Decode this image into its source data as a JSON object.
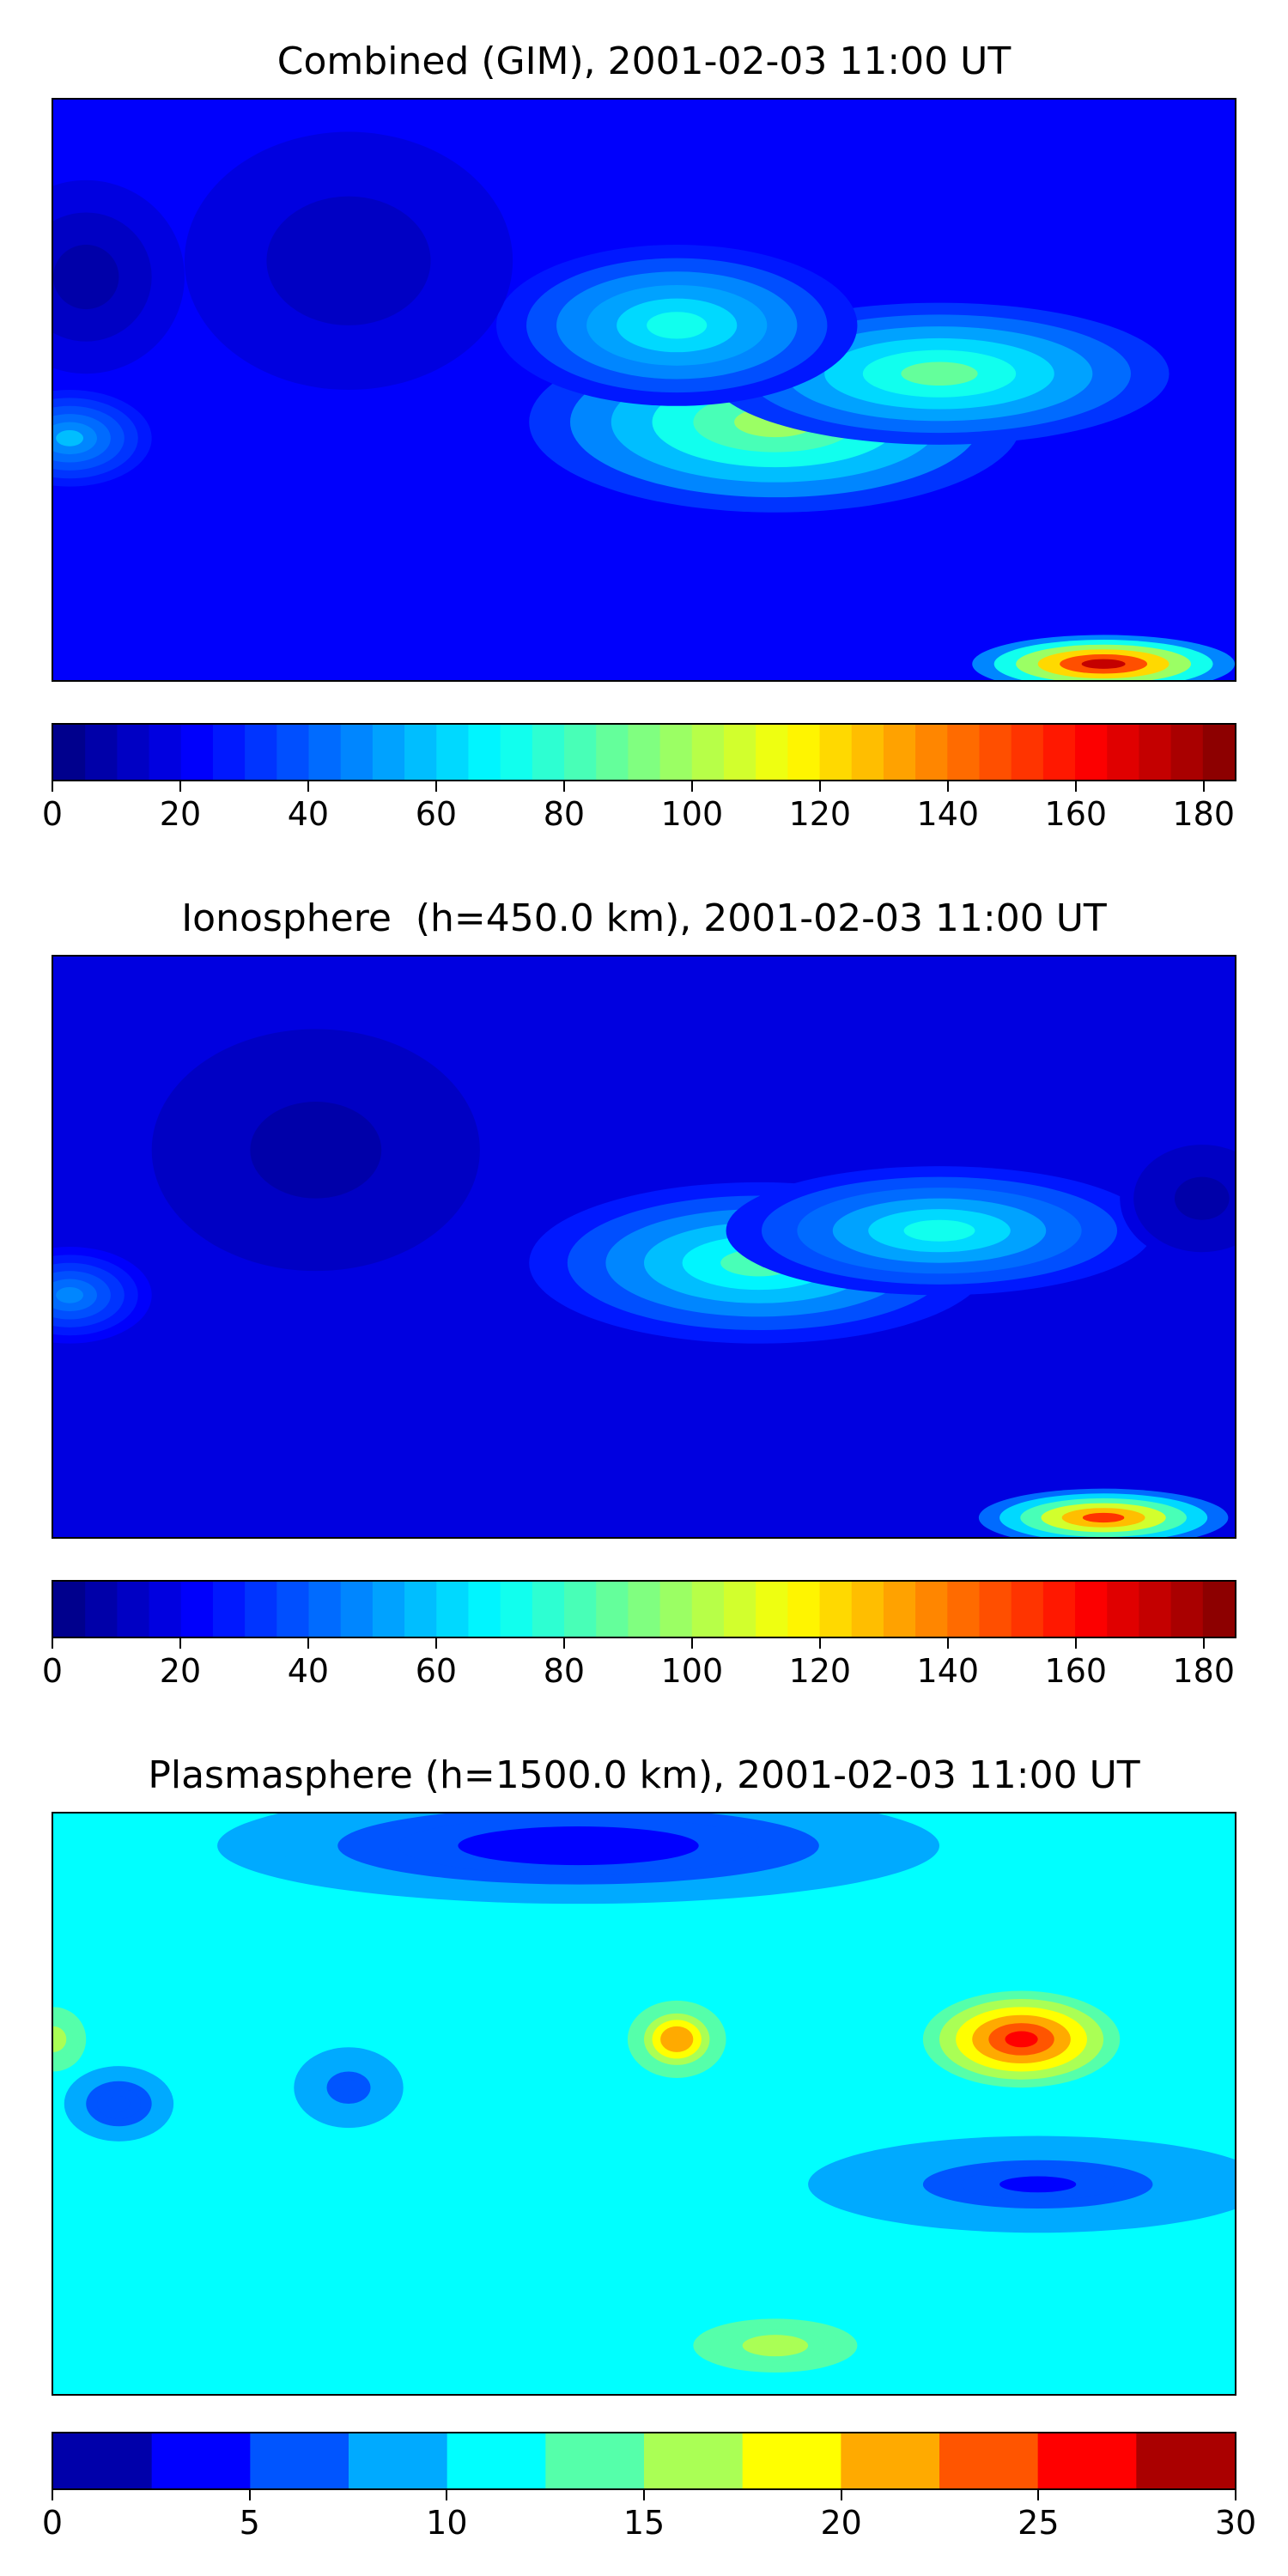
{
  "chart_data": [
    {
      "type": "heatmap",
      "title": "Combined (GIM), 2001-02-03 11:00 UT",
      "colormap": "jet",
      "colorbar": {
        "min": 0,
        "max": 185,
        "levels": 37,
        "ticks": [
          0,
          20,
          40,
          60,
          80,
          100,
          120,
          140,
          160,
          180
        ]
      },
      "xlim": [
        -180,
        180
      ],
      "ylim": [
        -90,
        90
      ],
      "background_value": 20,
      "features": [
        {
          "lon": 140,
          "lat": -85,
          "value": 170,
          "width": 40,
          "height": 9
        },
        {
          "lon": 40,
          "lat": -10,
          "value": 95,
          "width": 75,
          "height": 28
        },
        {
          "lon": 90,
          "lat": 5,
          "value": 85,
          "width": 70,
          "height": 22
        },
        {
          "lon": 10,
          "lat": 20,
          "value": 70,
          "width": 55,
          "height": 25
        },
        {
          "lon": -175,
          "lat": -15,
          "value": 55,
          "width": 25,
          "height": 15
        },
        {
          "lon": -170,
          "lat": 35,
          "value": 5,
          "width": 30,
          "height": 30
        },
        {
          "lon": -90,
          "lat": 40,
          "value": 10,
          "width": 50,
          "height": 40
        }
      ]
    },
    {
      "type": "heatmap",
      "title": "Ionosphere  (h=450.0 km), 2001-02-03 11:00 UT",
      "colormap": "jet",
      "colorbar": {
        "min": 0,
        "max": 185,
        "levels": 37,
        "ticks": [
          0,
          20,
          40,
          60,
          80,
          100,
          120,
          140,
          160,
          180
        ]
      },
      "xlim": [
        -180,
        180
      ],
      "ylim": [
        -90,
        90
      ],
      "background_value": 18,
      "features": [
        {
          "lon": 140,
          "lat": -84,
          "value": 150,
          "width": 38,
          "height": 9
        },
        {
          "lon": 35,
          "lat": -5,
          "value": 80,
          "width": 70,
          "height": 25
        },
        {
          "lon": 90,
          "lat": 5,
          "value": 70,
          "width": 65,
          "height": 20
        },
        {
          "lon": -175,
          "lat": -15,
          "value": 45,
          "width": 25,
          "height": 15
        },
        {
          "lon": -100,
          "lat": 30,
          "value": 8,
          "width": 60,
          "height": 45
        },
        {
          "lon": 170,
          "lat": 15,
          "value": 8,
          "width": 25,
          "height": 20
        }
      ]
    },
    {
      "type": "heatmap",
      "title": "Plasmasphere (h=1500.0 km), 2001-02-03 11:00 UT",
      "colormap": "jet",
      "colorbar": {
        "min": 0,
        "max": 30,
        "levels": 12,
        "ticks": [
          0,
          5,
          10,
          15,
          20,
          25,
          30
        ]
      },
      "xlim": [
        -180,
        180
      ],
      "ylim": [
        -90,
        90
      ],
      "background_value": 11,
      "features": [
        {
          "lon": 115,
          "lat": 20,
          "value": 27,
          "width": 30,
          "height": 15
        },
        {
          "lon": 10,
          "lat": 20,
          "value": 22,
          "width": 15,
          "height": 12
        },
        {
          "lon": -180,
          "lat": 20,
          "value": 16,
          "width": 12,
          "height": 12
        },
        {
          "lon": -160,
          "lat": 0,
          "value": 5,
          "width": 20,
          "height": 14
        },
        {
          "lon": -20,
          "lat": 80,
          "value": 3,
          "width": 110,
          "height": 18
        },
        {
          "lon": 120,
          "lat": -25,
          "value": 4,
          "width": 70,
          "height": 15
        },
        {
          "lon": 40,
          "lat": -75,
          "value": 16,
          "width": 30,
          "height": 10
        },
        {
          "lon": -90,
          "lat": 5,
          "value": 6,
          "width": 20,
          "height": 15
        }
      ]
    }
  ]
}
